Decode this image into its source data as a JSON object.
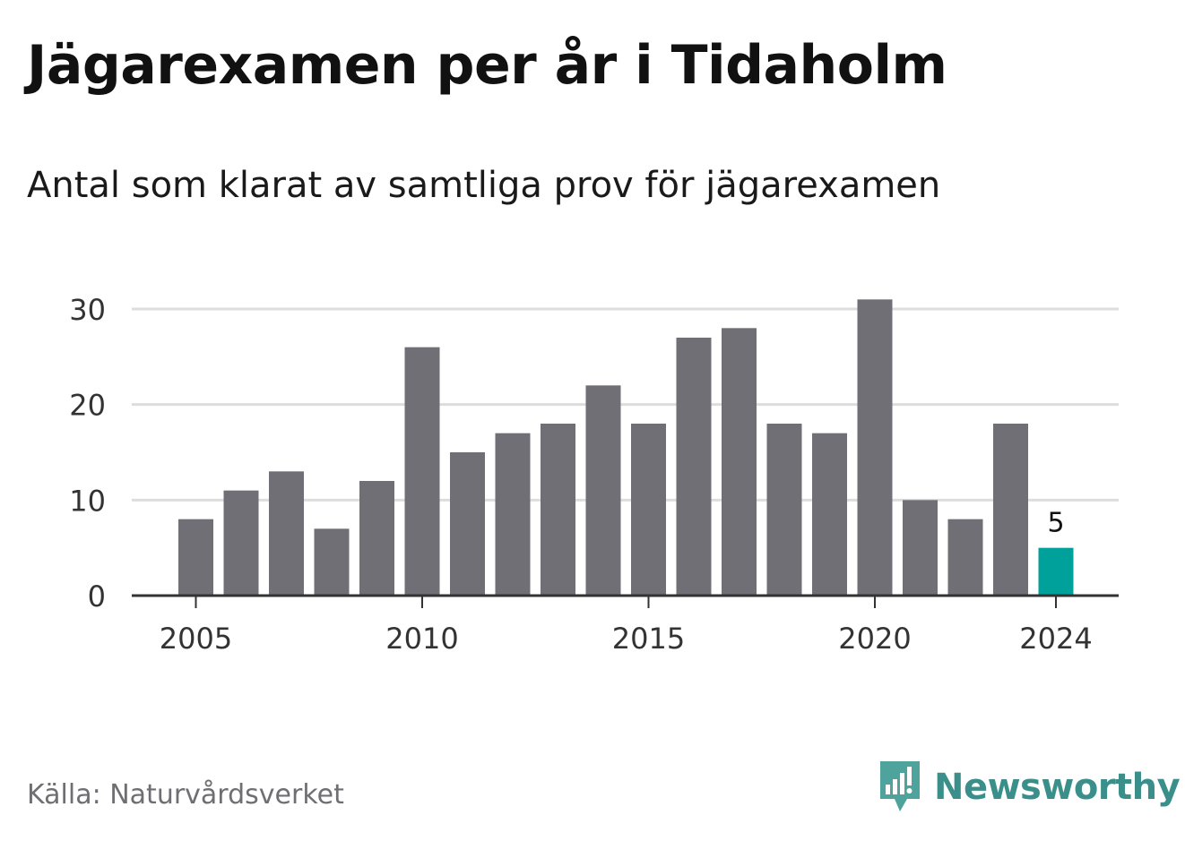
{
  "title": "Jägarexamen per år i Tidaholm",
  "subtitle": "Antal som klarat av samtliga prov för jägarexamen",
  "source": "Källa: Naturvårdsverket",
  "brand": "Newsworthy",
  "colors": {
    "bar": "#706f75",
    "highlight": "#00a19a",
    "grid": "#dddddd",
    "axis": "#333333",
    "brand": "#3a8f8a"
  },
  "chart_data": {
    "type": "bar",
    "x": [
      2005,
      2006,
      2007,
      2008,
      2009,
      2010,
      2011,
      2012,
      2013,
      2014,
      2015,
      2016,
      2017,
      2018,
      2019,
      2020,
      2021,
      2022,
      2023,
      2024
    ],
    "values": [
      8,
      11,
      13,
      7,
      12,
      26,
      15,
      17,
      18,
      22,
      18,
      27,
      28,
      18,
      17,
      31,
      10,
      8,
      18,
      5
    ],
    "highlight_index": 19,
    "highlight_label": "5",
    "x_ticks": [
      "2005",
      "2010",
      "2015",
      "2020",
      "2024"
    ],
    "y_ticks": [
      "0",
      "10",
      "20",
      "30"
    ],
    "ylim": [
      0,
      30
    ],
    "grid": true
  }
}
